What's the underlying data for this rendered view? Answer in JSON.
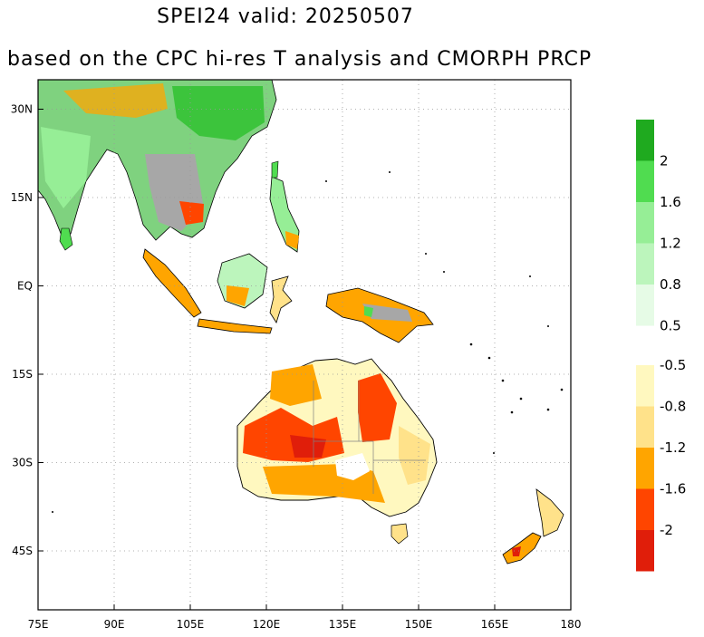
{
  "title_line1": "SPEI24   valid: 20250507",
  "title_line2": "based on the CPC hi-res T analysis and CMORPH PRCP",
  "map": {
    "lon_range": [
      75,
      180
    ],
    "lat_range": [
      -55,
      35
    ],
    "x_ticks": [
      {
        "lon": 75,
        "label": "75E"
      },
      {
        "lon": 90,
        "label": "90E"
      },
      {
        "lon": 105,
        "label": "105E"
      },
      {
        "lon": 120,
        "label": "120E"
      },
      {
        "lon": 135,
        "label": "135E"
      },
      {
        "lon": 150,
        "label": "150E"
      },
      {
        "lon": 165,
        "label": "165E"
      },
      {
        "lon": 180,
        "label": "180"
      }
    ],
    "y_ticks": [
      {
        "lat": 30,
        "label": "30N"
      },
      {
        "lat": 15,
        "label": "15N"
      },
      {
        "lat": 0,
        "label": "EQ"
      },
      {
        "lat": -15,
        "label": "15S"
      },
      {
        "lat": -30,
        "label": "30S"
      },
      {
        "lat": -45,
        "label": "45S"
      }
    ],
    "grid": "dotted"
  },
  "colorbar": {
    "wet": {
      "colors": [
        "#1faa1f",
        "#50dc50",
        "#96ee96",
        "#bcf5bc",
        "#e6fbe6"
      ],
      "labels": [
        "2",
        "1.6",
        "1.2",
        "0.8",
        "0.5"
      ]
    },
    "dry": {
      "colors": [
        "#fff8bf",
        "#ffe28a",
        "#ffa500",
        "#ff4500",
        "#e01e0a"
      ],
      "labels": [
        "-0.5",
        "-0.8",
        "-1.2",
        "-1.6",
        "-2"
      ]
    }
  }
}
